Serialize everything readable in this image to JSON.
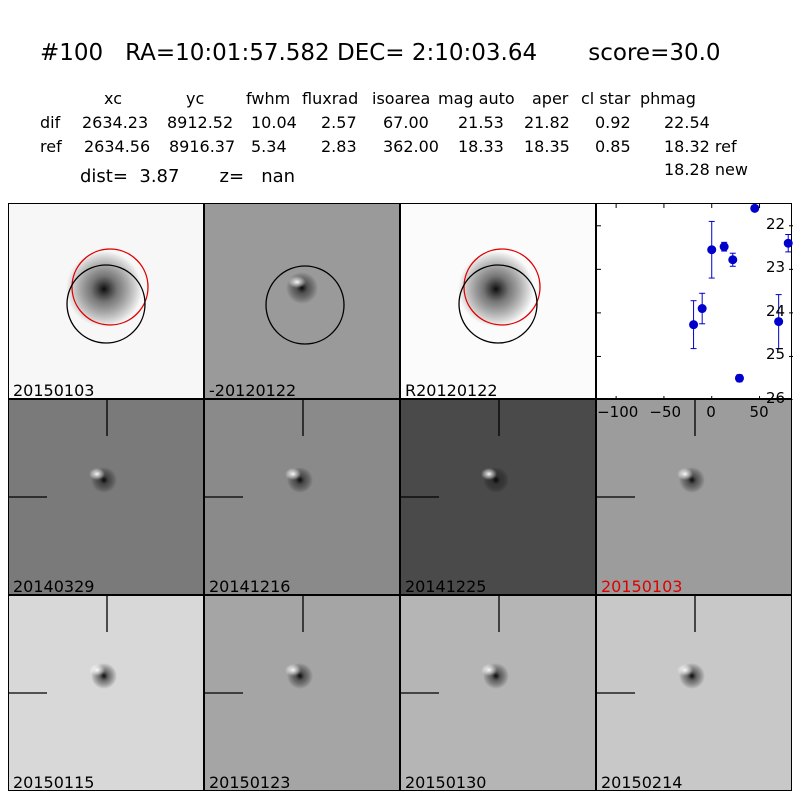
{
  "header": {
    "title": "#100   RA=10:01:57.582 DEC= 2:10:03.64       score=30.0",
    "columns": [
      "xc",
      "yc",
      "fwhm",
      "fluxrad",
      "isoarea",
      "mag auto",
      "aper",
      "cl star",
      "phmag"
    ],
    "rows": [
      {
        "label": "dif",
        "values": [
          "2634.23",
          "8912.52",
          "10.04",
          "2.57",
          "67.00",
          "21.53",
          "21.82",
          "0.92",
          "22.54"
        ]
      },
      {
        "label": "ref",
        "values": [
          "2634.56",
          "8916.37",
          "5.34",
          "2.83",
          "362.00",
          "18.33",
          "18.35",
          "0.85",
          "18.32 ref"
        ]
      }
    ],
    "new_mag": "18.28 new",
    "dist": "dist=  3.87       z=   nan"
  },
  "panels": [
    {
      "label": "20150103",
      "bg": "#f7f7f7",
      "kind": "source"
    },
    {
      "label": "-20120122",
      "bg": "#9a9a9a",
      "kind": "dif"
    },
    {
      "label": "R20120122",
      "bg": "#fbfbfb",
      "kind": "source"
    },
    {
      "label": "20140329",
      "bg": "#7a7a7a",
      "kind": "stamp"
    },
    {
      "label": "20141216",
      "bg": "#8a8a8a",
      "kind": "stamp"
    },
    {
      "label": "20141225",
      "bg": "#4a4a4a",
      "kind": "stamp"
    },
    {
      "label": "20150103",
      "bg": "#9c9c9c",
      "kind": "stamp",
      "highlight": "#e00000"
    },
    {
      "label": "20150115",
      "bg": "#d8d8d8",
      "kind": "stamp"
    },
    {
      "label": "20150123",
      "bg": "#a5a5a5",
      "kind": "stamp"
    },
    {
      "label": "20150130",
      "bg": "#b5b5b5",
      "kind": "stamp"
    },
    {
      "label": "20150214",
      "bg": "#c8c8c8",
      "kind": "stamp"
    }
  ],
  "chart_data": {
    "type": "scatter",
    "xlim": [
      -120,
      85
    ],
    "ylim": [
      26,
      21.5
    ],
    "xticks": [
      -100,
      -50,
      0,
      50
    ],
    "yticks": [
      22,
      23,
      24,
      25,
      26
    ],
    "color": "#0000cc",
    "points": [
      {
        "x": -19,
        "y": 24.27,
        "err": 0.55
      },
      {
        "x": -10,
        "y": 23.9,
        "err": 0.35
      },
      {
        "x": 0,
        "y": 22.55,
        "err": 0.65
      },
      {
        "x": 13,
        "y": 22.48,
        "err": 0.1
      },
      {
        "x": 22,
        "y": 22.78,
        "err": 0.15
      },
      {
        "x": 29,
        "y": 25.5,
        "err": 0.08
      },
      {
        "x": 45,
        "y": 21.6,
        "err": 0.0
      },
      {
        "x": 70,
        "y": 24.2,
        "err": 0.62
      },
      {
        "x": 80,
        "y": 22.4,
        "err": 0.2
      }
    ]
  }
}
